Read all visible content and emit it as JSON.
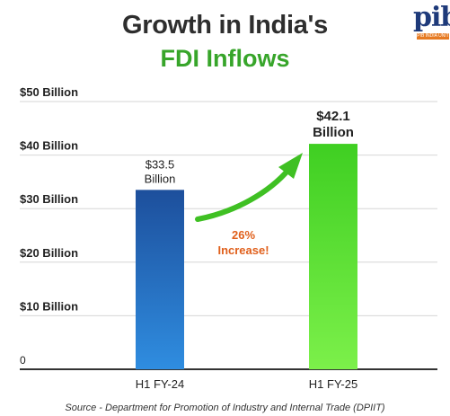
{
  "header": {
    "title_line1": "Growth in India's",
    "title_line2": "FDI Inflows",
    "logo_text": "pib",
    "logo_subtext": "PIB INDIA UNIT"
  },
  "colors": {
    "title": "#2e2e2e",
    "accent_green": "#37a52a",
    "bar_blue": "#1f5fb0",
    "bar_green": "#4bd82a",
    "annotation": "#e0601c",
    "arrow": "#3fc023"
  },
  "chart_data": {
    "type": "bar",
    "title": "Growth in India's FDI Inflows",
    "categories": [
      "H1 FY-24",
      "H1 FY-25"
    ],
    "values": [
      33.5,
      42.1
    ],
    "value_labels": [
      "$33.5 Billion",
      "$42.1 Billion"
    ],
    "y_ticks": [
      0,
      10,
      20,
      30,
      40,
      50
    ],
    "y_tick_labels": [
      "0",
      "$10 Billion",
      "$20 Billion",
      "$30 Billion",
      "$40 Billion",
      "$50 Billion"
    ],
    "ylim": [
      0,
      50
    ],
    "xlabel": "",
    "ylabel": "",
    "grid": true,
    "annotation": {
      "line1": "26%",
      "line2": "Increase!"
    }
  },
  "footer": {
    "source": "Source - Department for Promotion of Industry and Internal Trade (DPIIT)"
  }
}
